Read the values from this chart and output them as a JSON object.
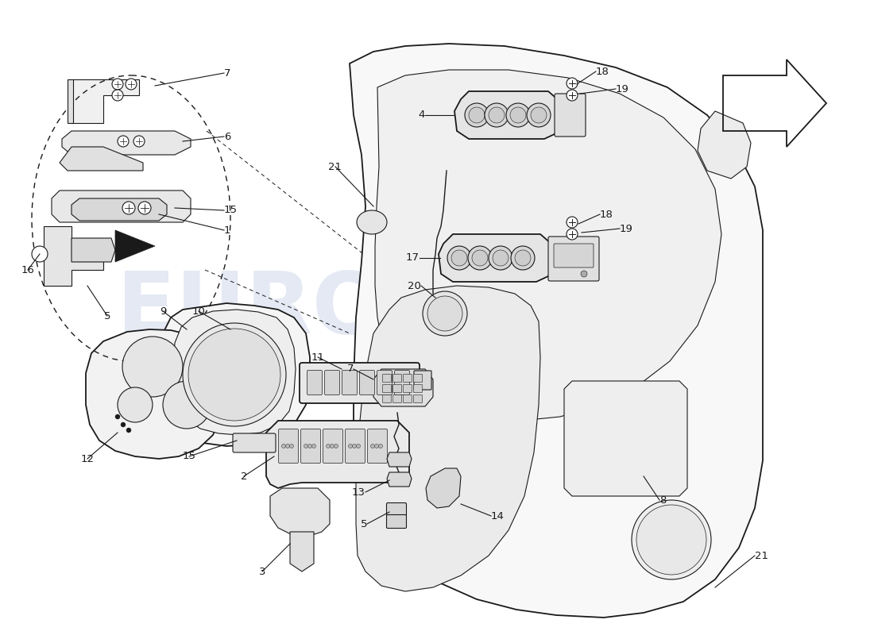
{
  "bg_color": "#ffffff",
  "line_color": "#1a1a1a",
  "label_color": "#1a1a1a",
  "watermark_color1": "#c5cfe8",
  "watermark_color2": "#b8c878",
  "fig_width": 11.0,
  "fig_height": 8.0,
  "dpi": 100,
  "lw_main": 1.3,
  "lw_thin": 0.8,
  "lw_dash": 0.9,
  "label_fontsize": 9.5
}
